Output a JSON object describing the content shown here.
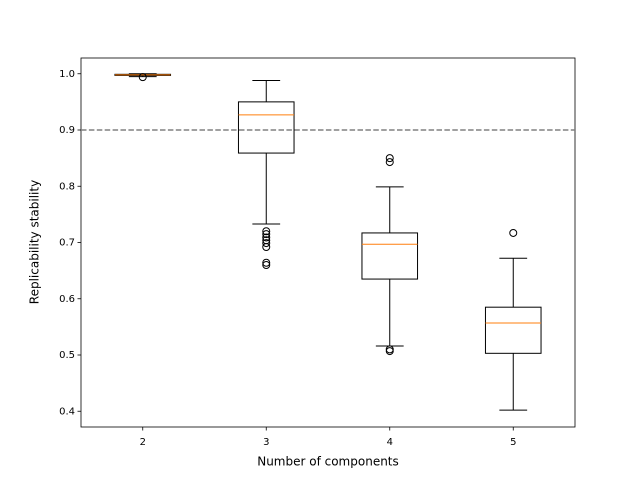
{
  "chart_data": {
    "type": "box",
    "xlabel": "Number of components",
    "ylabel": "Replicability stability",
    "categories": [
      "2",
      "3",
      "4",
      "5"
    ],
    "boxes": [
      {
        "whislo": 0.995,
        "q1": 0.997,
        "med": 0.998,
        "q3": 0.999,
        "whishi": 1.0,
        "fliers": [
          0.994
        ]
      },
      {
        "whislo": 0.733,
        "q1": 0.859,
        "med": 0.927,
        "q3": 0.95,
        "whishi": 0.988,
        "fliers": [
          0.72,
          0.715,
          0.709,
          0.704,
          0.699,
          0.692,
          0.664,
          0.66
        ]
      },
      {
        "whislo": 0.516,
        "q1": 0.635,
        "med": 0.697,
        "q3": 0.717,
        "whishi": 0.799,
        "fliers": [
          0.85,
          0.843,
          0.51,
          0.507
        ]
      },
      {
        "whislo": 0.402,
        "q1": 0.503,
        "med": 0.557,
        "q3": 0.585,
        "whishi": 0.672,
        "fliers": [
          0.717
        ]
      }
    ],
    "box_color": "#000000",
    "median_color": "#ff7f0e",
    "reference_line": {
      "value": 0.9,
      "color": "#808080",
      "style": "dashed"
    },
    "ylim": [
      0.372,
      1.028
    ],
    "yticks": [
      0.4,
      0.5,
      0.6,
      0.7,
      0.8,
      0.9,
      {
        "value": 1,
        "label": "1.0"
      }
    ]
  }
}
